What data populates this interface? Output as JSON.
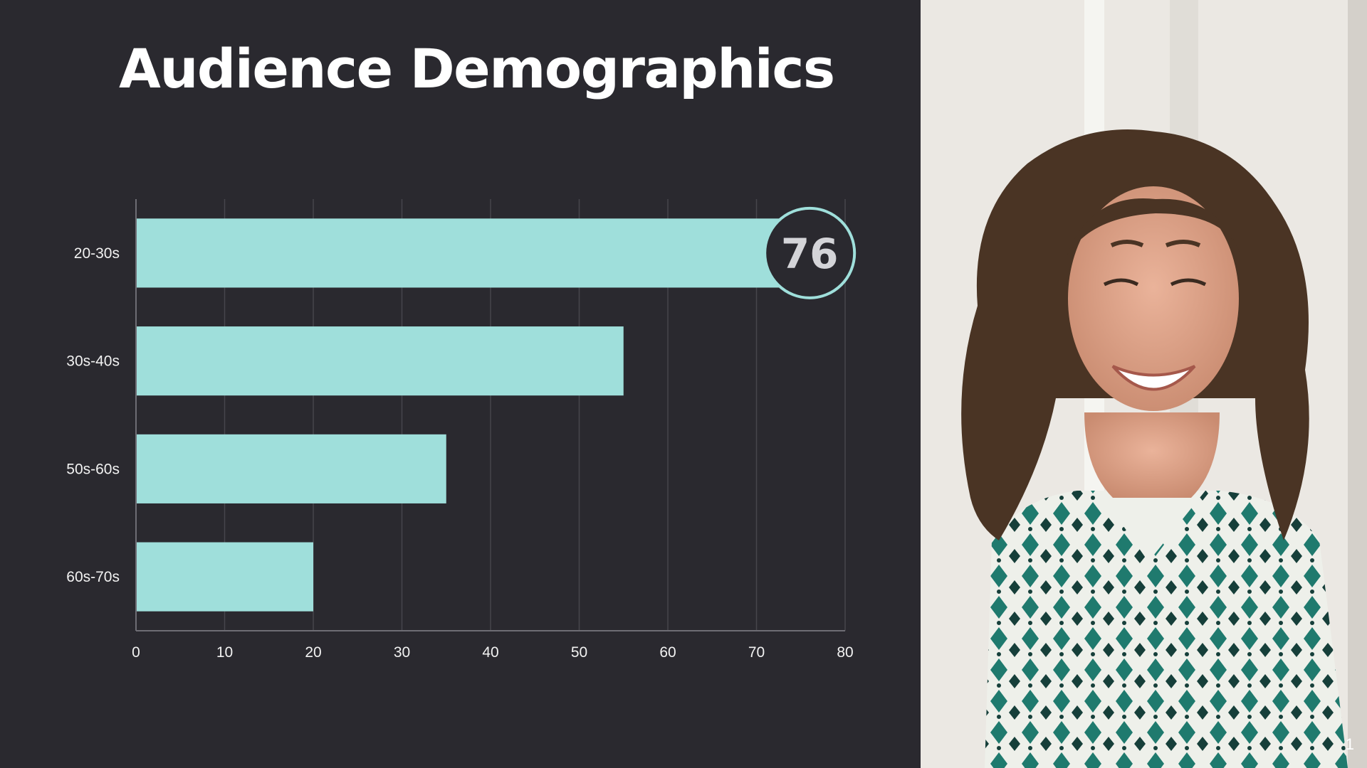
{
  "slide": {
    "title": "Audience Demographics",
    "page_number": "1"
  },
  "chart_data": {
    "type": "bar",
    "orientation": "horizontal",
    "categories": [
      "20-30s",
      "30s-40s",
      "50s-60s",
      "60s-70s"
    ],
    "values": [
      76,
      55,
      35,
      20
    ],
    "xlim": [
      0,
      80
    ],
    "x_ticks": [
      0,
      10,
      20,
      30,
      40,
      50,
      60,
      70,
      80
    ],
    "grid": true,
    "highlight": {
      "category": "20-30s",
      "label": "76"
    },
    "colors": {
      "bar": "#9fdfdb",
      "grid": "#46454c",
      "axis": "#6e6d74",
      "badge_fill": "#2a292f",
      "badge_stroke": "#9fdfdb"
    }
  },
  "photo": {
    "subject": "smiling-woman-photo",
    "colors": {
      "background": "#ece9e4",
      "hair": "#4a3424",
      "skin": "#e0a98e",
      "shirt_pattern": "#1f7a6e"
    }
  }
}
